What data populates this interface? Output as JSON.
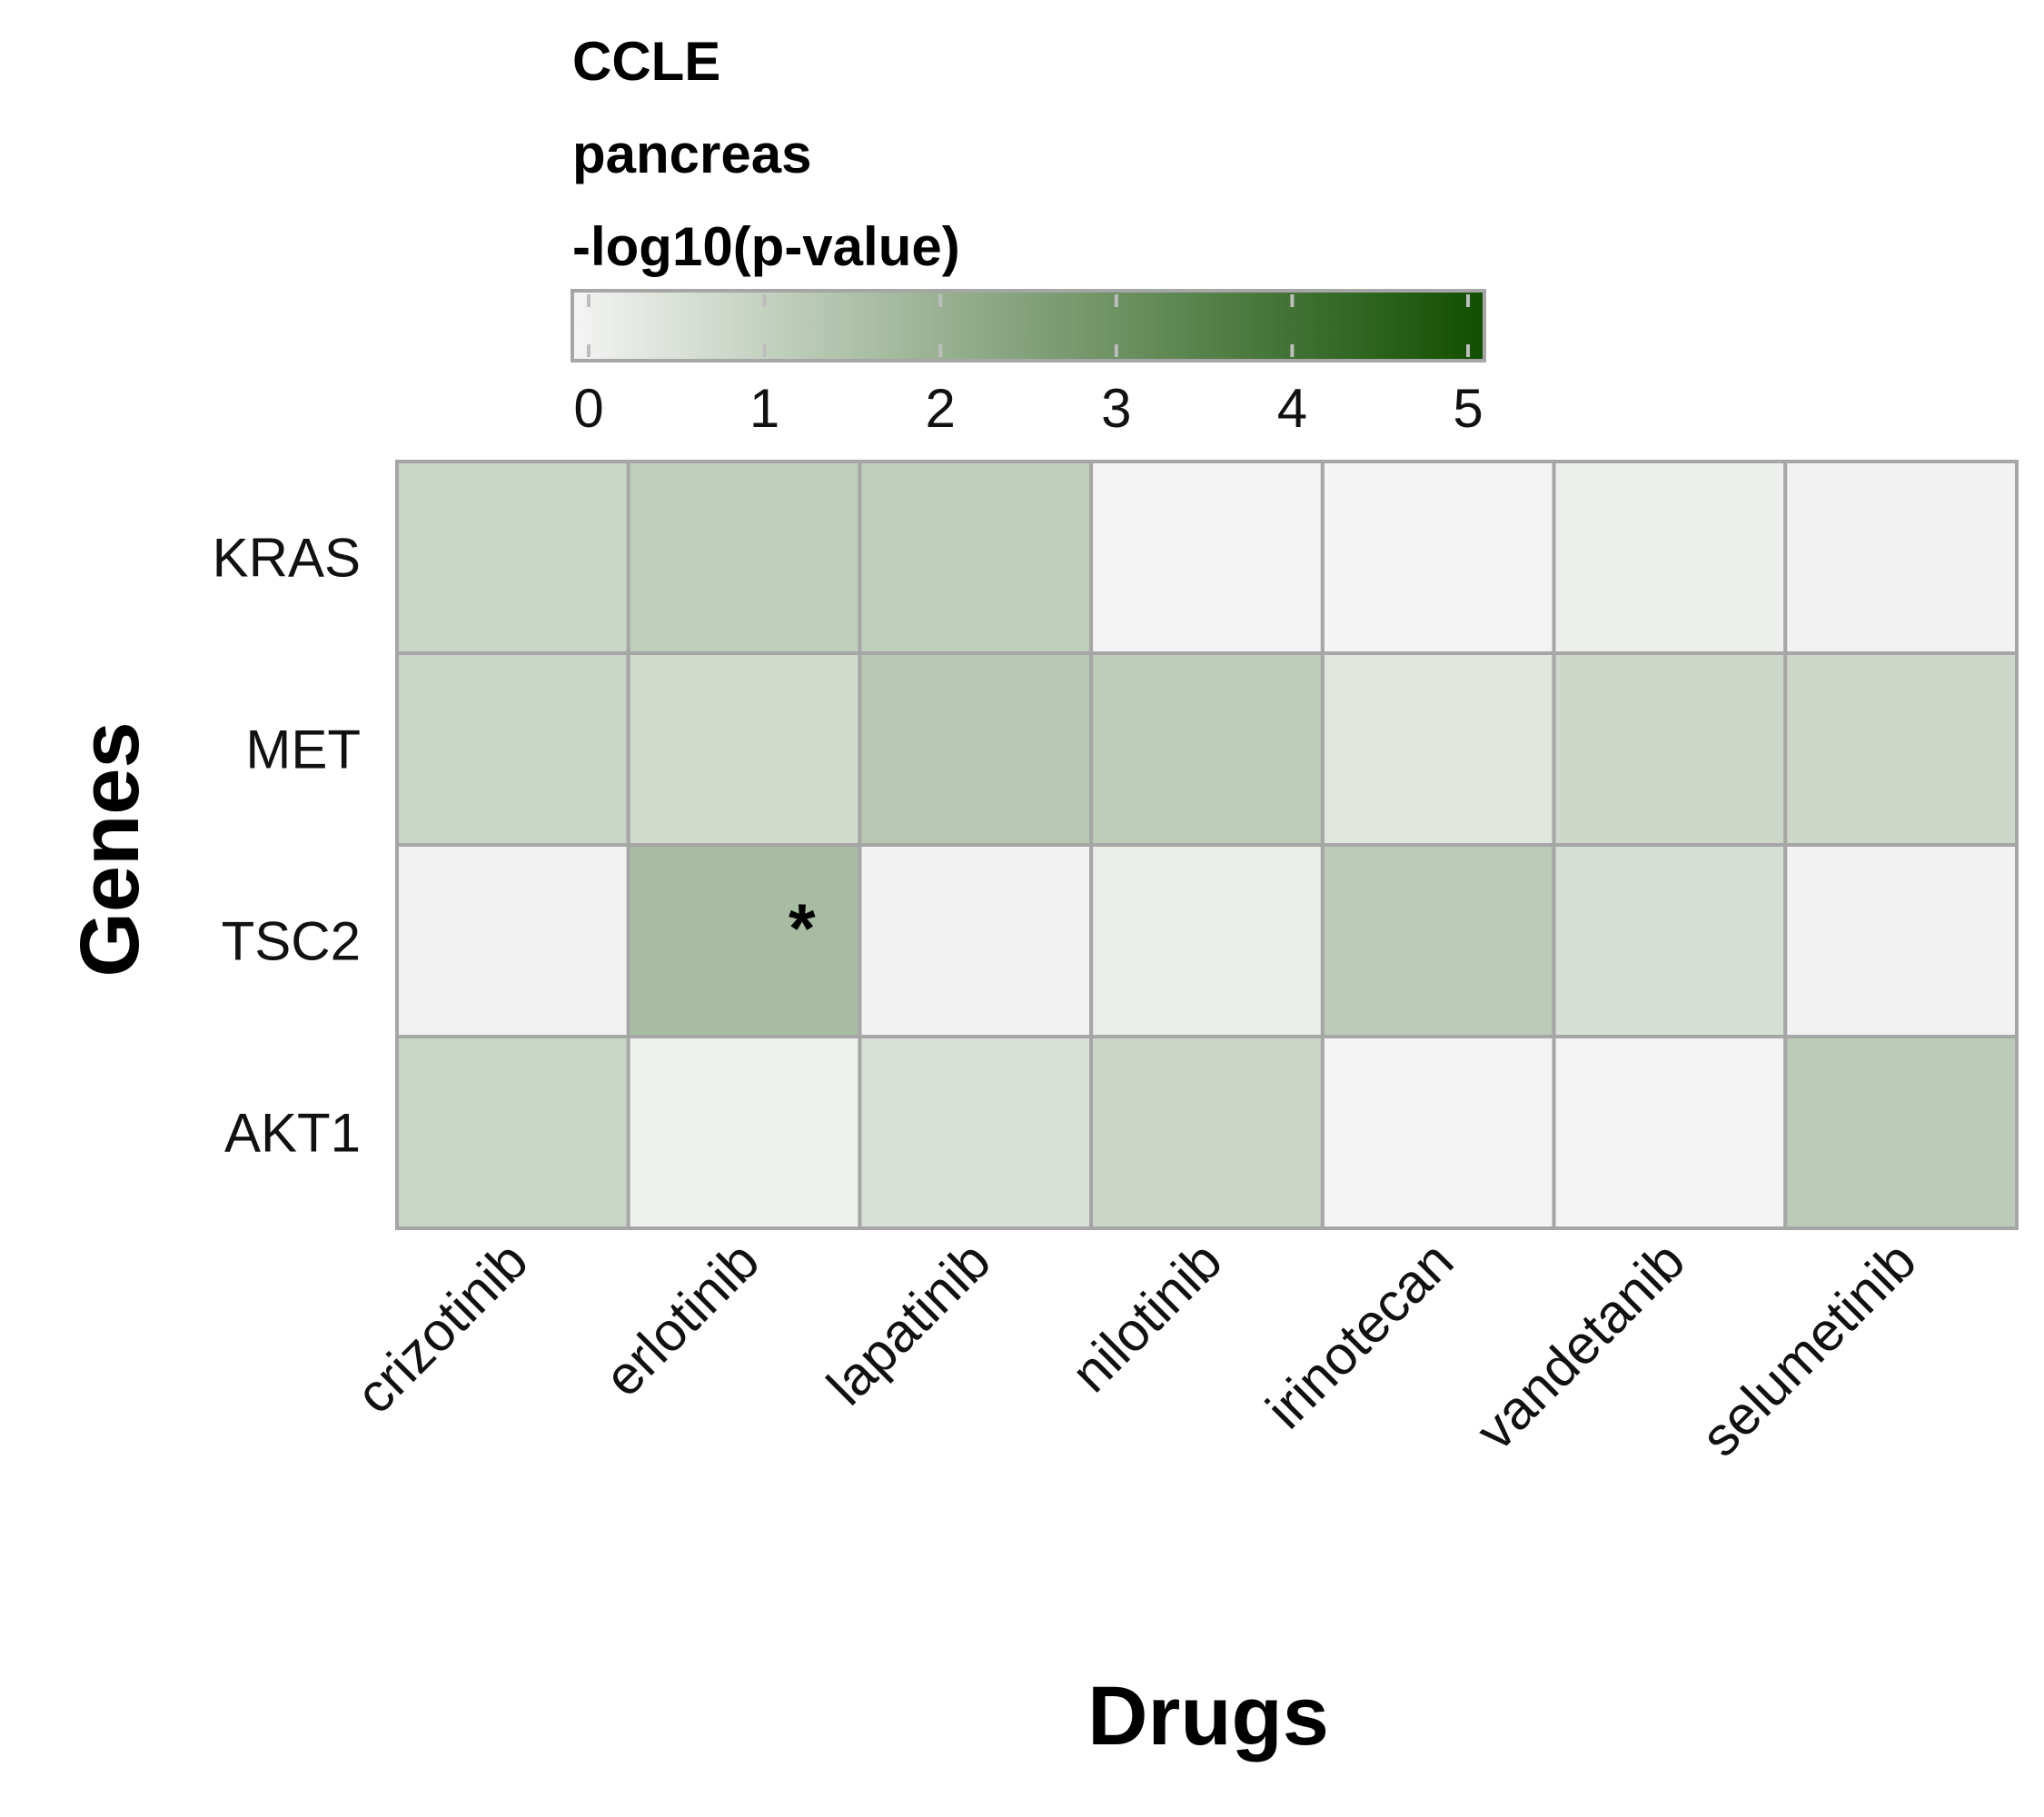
{
  "chart_data": {
    "type": "heatmap",
    "legend": {
      "title_lines": [
        "CCLE",
        "pancreas",
        "-log10(p-value)"
      ],
      "range": [
        0,
        5
      ],
      "ticks": [
        "0",
        "1",
        "2",
        "3",
        "4",
        "5"
      ],
      "colors": [
        "#f4f4f4",
        "#114f00"
      ]
    },
    "columns": [
      "crizotinib",
      "erlotinib",
      "lapatinib",
      "nilotinib",
      "irinotecan",
      "vandetanib",
      "selumetinib"
    ],
    "rows": [
      "KRAS",
      "MET",
      "TSC2",
      "AKT1"
    ],
    "values": [
      [
        0.95,
        1.15,
        1.15,
        0.0,
        0.0,
        0.15,
        0.05
      ],
      [
        0.95,
        0.8,
        1.35,
        1.2,
        0.45,
        0.85,
        0.85
      ],
      [
        0.05,
        1.7,
        0.05,
        0.2,
        1.25,
        0.65,
        0.05
      ],
      [
        0.95,
        0.1,
        0.6,
        0.9,
        0.0,
        0.0,
        1.25
      ]
    ],
    "annotations": [
      {
        "row": "TSC2",
        "column": "erlotinib",
        "text": "*"
      }
    ],
    "xlabel": "Drugs",
    "ylabel": "Genes"
  }
}
